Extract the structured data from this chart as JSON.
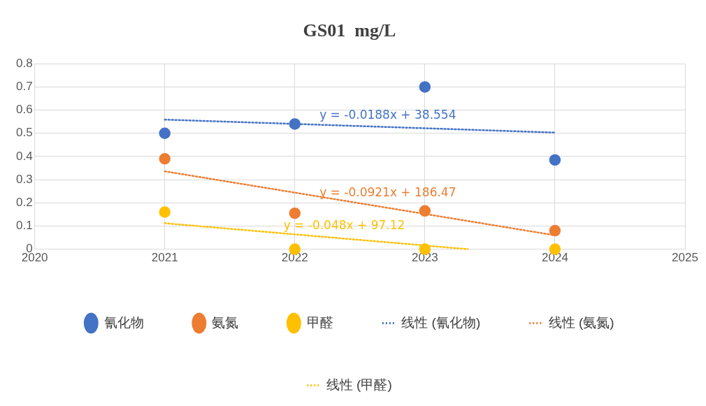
{
  "chart_data": {
    "type": "scatter",
    "title": "GS01  mg/L",
    "xlim": [
      2020,
      2025
    ],
    "xticks": [
      2020,
      2021,
      2022,
      2023,
      2024,
      2025
    ],
    "ylim": [
      0,
      0.8
    ],
    "yticks": [
      0,
      0.1,
      0.2,
      0.3,
      0.4,
      0.5,
      0.6,
      0.7,
      0.8
    ],
    "grid": true,
    "legend": "bottom",
    "series": [
      {
        "name": "氰化物",
        "marker": "circle",
        "color": "#4472c4",
        "x": [
          2021,
          2022,
          2023,
          2024
        ],
        "values": [
          0.5,
          0.54,
          0.7,
          0.385
        ]
      },
      {
        "name": "氨氮",
        "marker": "circle",
        "color": "#ed7d31",
        "x": [
          2021,
          2022,
          2023,
          2024
        ],
        "values": [
          0.39,
          0.155,
          0.165,
          0.08
        ]
      },
      {
        "name": "甲醛",
        "marker": "circle",
        "color": "#ffc000",
        "x": [
          2021,
          2022,
          2023,
          2024
        ],
        "values": [
          0.16,
          0,
          0,
          0
        ]
      },
      {
        "name": "线性 (氰化物)",
        "type": "line",
        "marker": "none",
        "line_style": "dotted",
        "color": "#4472c4",
        "x": [
          2021,
          2024
        ],
        "values": [
          0.559,
          0.503
        ]
      },
      {
        "name": "线性 (氨氮)",
        "type": "line",
        "marker": "none",
        "line_style": "dotted",
        "color": "#ed7d31",
        "x": [
          2021,
          2024
        ],
        "values": [
          0.336,
          0.06
        ]
      },
      {
        "name": "线性 (甲醛)",
        "type": "line",
        "marker": "none",
        "line_style": "dotted",
        "color": "#ffc000",
        "x": [
          2021,
          2023.33
        ],
        "values": [
          0.112,
          0
        ]
      }
    ],
    "annotations": [
      "y = -0.0188x + 38.554",
      "y = -0.0921x + 186.47",
      "y = -0.048x + 97.12"
    ]
  }
}
